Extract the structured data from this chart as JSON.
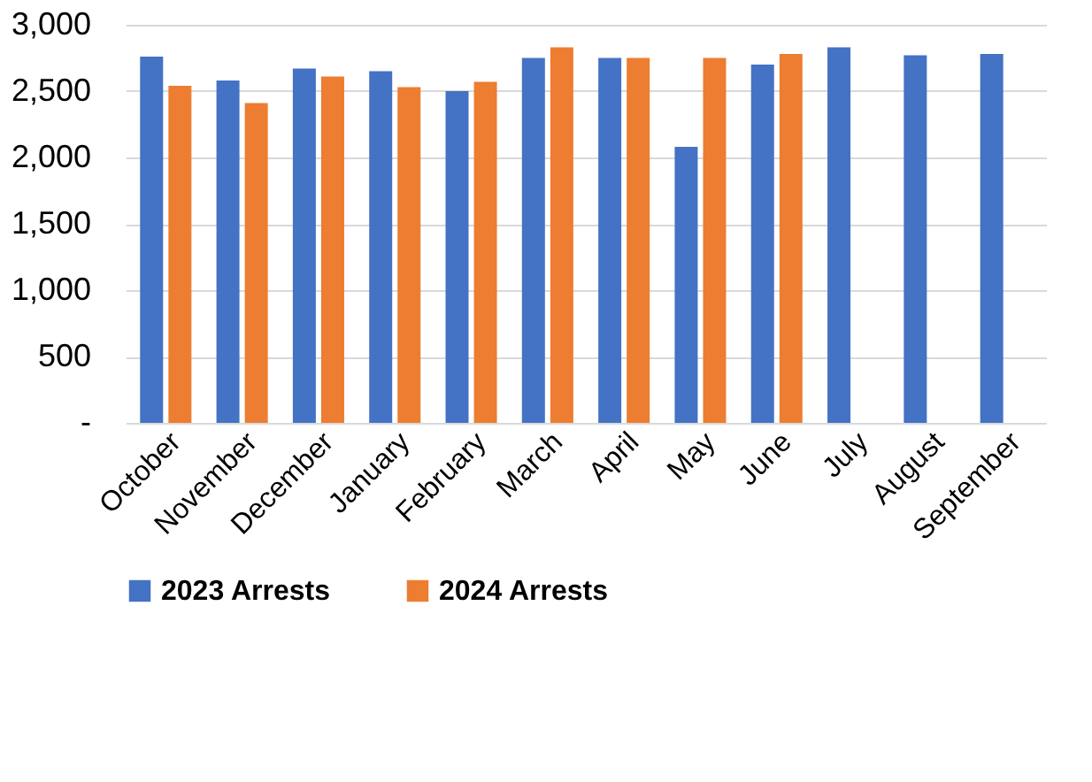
{
  "chart_data": {
    "type": "bar",
    "categories": [
      "October",
      "November",
      "December",
      "January",
      "February",
      "March",
      "April",
      "May",
      "June",
      "July",
      "August",
      "September"
    ],
    "series": [
      {
        "name": "2023 Arrests",
        "color": "#4472c4",
        "values": [
          2760,
          2580,
          2670,
          2650,
          2500,
          2750,
          2750,
          2080,
          2700,
          2830,
          2770,
          2780
        ]
      },
      {
        "name": "2024 Arrests",
        "color": "#ed7d31",
        "values": [
          2540,
          2410,
          2610,
          2530,
          2570,
          2830,
          2750,
          2750,
          2780,
          null,
          null,
          null
        ]
      }
    ],
    "ylim": [
      0,
      3000
    ],
    "yticks": [
      {
        "value": 0,
        "label": "-"
      },
      {
        "value": 500,
        "label": "500"
      },
      {
        "value": 1000,
        "label": "1,000"
      },
      {
        "value": 1500,
        "label": "1,500"
      },
      {
        "value": 2000,
        "label": "2,000"
      },
      {
        "value": 2500,
        "label": "2,500"
      },
      {
        "value": 3000,
        "label": "3,000"
      }
    ],
    "grid": "y",
    "legend": "bottom"
  }
}
